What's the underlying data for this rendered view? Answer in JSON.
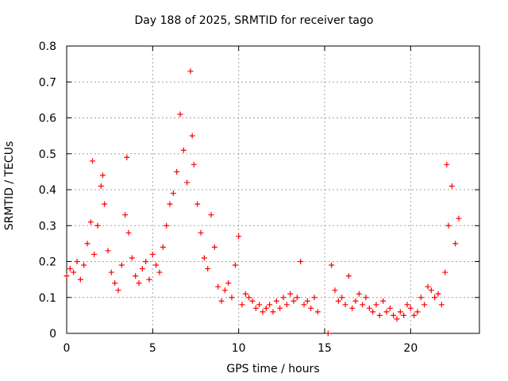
{
  "chart_data": {
    "type": "scatter",
    "title": "Day 188 of 2025, SRMTID for receiver tago",
    "xlabel": "GPS time / hours",
    "ylabel": "SRMTID / TECUs",
    "xlim": [
      0,
      24
    ],
    "ylim": [
      0,
      0.8
    ],
    "xticks": [
      0,
      5,
      10,
      15,
      20
    ],
    "yticks": [
      0,
      0.1,
      0.2,
      0.3,
      0.4,
      0.5,
      0.6,
      0.7,
      0.8
    ],
    "grid": true,
    "marker": "+",
    "color": "#ff0000",
    "series": [
      {
        "name": "SRMTID",
        "x": [
          0.0,
          0.2,
          0.4,
          0.6,
          0.8,
          1.0,
          1.2,
          1.4,
          1.5,
          1.6,
          1.8,
          2.0,
          2.1,
          2.2,
          2.4,
          2.6,
          2.8,
          3.0,
          3.2,
          3.4,
          3.5,
          3.6,
          3.8,
          4.0,
          4.2,
          4.4,
          4.6,
          4.8,
          5.0,
          5.2,
          5.4,
          5.6,
          5.8,
          6.0,
          6.2,
          6.4,
          6.6,
          6.8,
          7.0,
          7.2,
          7.3,
          7.4,
          7.6,
          7.8,
          8.0,
          8.2,
          8.4,
          8.6,
          8.8,
          9.0,
          9.2,
          9.4,
          9.6,
          9.8,
          10.0,
          10.2,
          10.4,
          10.6,
          10.8,
          11.0,
          11.2,
          11.4,
          11.6,
          11.8,
          12.0,
          12.2,
          12.4,
          12.6,
          12.8,
          13.0,
          13.2,
          13.4,
          13.6,
          13.8,
          14.0,
          14.2,
          14.4,
          14.6,
          15.2,
          15.4,
          15.6,
          15.8,
          16.0,
          16.2,
          16.4,
          16.6,
          16.8,
          17.0,
          17.2,
          17.4,
          17.6,
          17.8,
          18.0,
          18.2,
          18.4,
          18.6,
          18.8,
          19.0,
          19.2,
          19.4,
          19.6,
          19.8,
          20.0,
          20.2,
          20.4,
          20.6,
          20.8,
          21.0,
          21.2,
          21.4,
          21.6,
          21.8,
          22.0,
          22.1,
          22.2,
          22.4,
          22.6,
          22.8
        ],
        "y": [
          0.16,
          0.18,
          0.17,
          0.2,
          0.15,
          0.19,
          0.25,
          0.31,
          0.48,
          0.22,
          0.3,
          0.41,
          0.44,
          0.36,
          0.23,
          0.17,
          0.14,
          0.12,
          0.19,
          0.33,
          0.49,
          0.28,
          0.21,
          0.16,
          0.14,
          0.18,
          0.2,
          0.15,
          0.22,
          0.19,
          0.17,
          0.24,
          0.3,
          0.36,
          0.39,
          0.45,
          0.61,
          0.51,
          0.42,
          0.73,
          0.55,
          0.47,
          0.36,
          0.28,
          0.21,
          0.18,
          0.33,
          0.24,
          0.13,
          0.09,
          0.12,
          0.14,
          0.1,
          0.19,
          0.27,
          0.08,
          0.11,
          0.1,
          0.09,
          0.07,
          0.08,
          0.06,
          0.07,
          0.08,
          0.06,
          0.09,
          0.07,
          0.1,
          0.08,
          0.11,
          0.09,
          0.1,
          0.2,
          0.08,
          0.09,
          0.07,
          0.1,
          0.06,
          0.0,
          0.19,
          0.12,
          0.09,
          0.1,
          0.08,
          0.16,
          0.07,
          0.09,
          0.11,
          0.08,
          0.1,
          0.07,
          0.06,
          0.08,
          0.05,
          0.09,
          0.06,
          0.07,
          0.05,
          0.04,
          0.06,
          0.05,
          0.08,
          0.07,
          0.05,
          0.06,
          0.1,
          0.08,
          0.13,
          0.12,
          0.1,
          0.11,
          0.08,
          0.17,
          0.47,
          0.3,
          0.41,
          0.25,
          0.32
        ]
      }
    ]
  }
}
